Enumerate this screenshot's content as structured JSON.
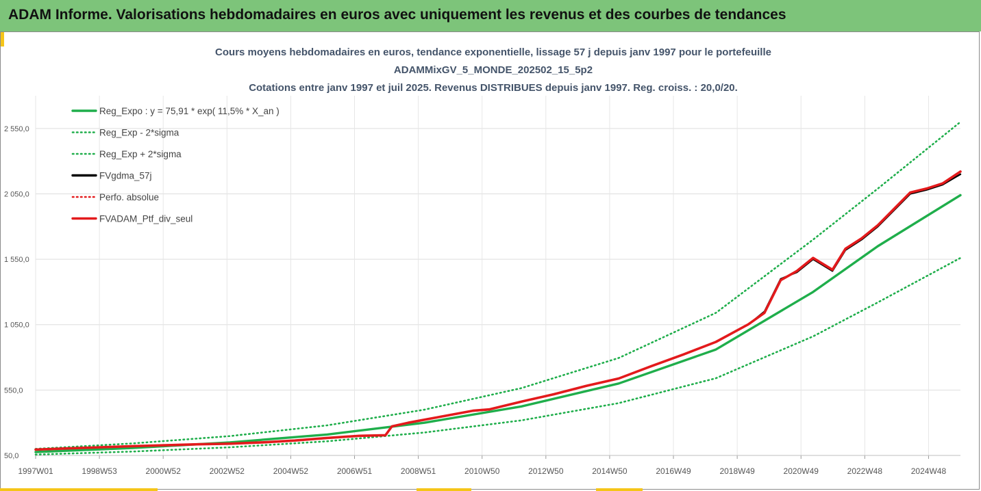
{
  "banner": {
    "title": "ADAM Informe. Valorisations hebdomadaires en euros avec uniquement les revenus et des courbes de tendances"
  },
  "colors": {
    "banner_bg": "#7dc47a",
    "accent": "#f5c518",
    "trend": "#1fae4b",
    "fv": "#000000",
    "perf": "#e31a1c",
    "title": "#44546a"
  },
  "chart_data": {
    "type": "line",
    "title": [
      "Cours moyens hebdomadaires  en euros, tendance exponentielle, lissage 57 j depuis janv 1997 pour le portefeuille",
      "ADAMMixGV_5_MONDE_202502_15_5p2",
      "Cotations  entre janv 1997 et juil 2025. Revenus DISTRIBUES depuis janv 1997. Reg. croiss. : 20,0/20."
    ],
    "xlabel": "",
    "ylabel": "",
    "ylim": [
      50,
      2800
    ],
    "y_ticks": [
      50,
      550,
      1050,
      1550,
      2050,
      2550
    ],
    "y_tick_labels": [
      "50,0",
      "550,0",
      "1 050,0",
      "1 550,0",
      "2 050,0",
      "2 550,0"
    ],
    "x_tick_labels": [
      "1997W01",
      "1998W53",
      "2000W52",
      "2002W52",
      "2004W52",
      "2006W51",
      "2008W51",
      "2010W50",
      "2012W50",
      "2014W50",
      "2016W49",
      "2018W49",
      "2020W49",
      "2022W48",
      "2024W48"
    ],
    "xlim": [
      1997.0,
      2025.55
    ],
    "grid": true,
    "legend_position": "top-left",
    "legend": [
      "Reg_Expo : y = 75,91 * exp( 11,5% *  X_an )",
      "Reg_Exp - 2*sigma",
      "Reg_Exp + 2*sigma",
      "FVgdma_57j",
      "Perfo. absolue",
      "FVADAM_Ptf_div_seul"
    ],
    "series": [
      {
        "name": "Reg_Expo : y = 75,91 * exp( 11,5% *  X_an )",
        "style": "solid",
        "color": "#1fae4b",
        "x": [
          1997.0,
          2000.0,
          2003.0,
          2006.0,
          2009.0,
          2012.0,
          2015.0,
          2018.0,
          2021.0,
          2023.0,
          2025.55
        ],
        "values": [
          76,
          107,
          150,
          210,
          300,
          425,
          600,
          860,
          1300,
          1650,
          2040
        ]
      },
      {
        "name": "Reg_Exp - 2*sigma",
        "style": "dotted",
        "color": "#1fae4b",
        "x": [
          1997.0,
          2000.0,
          2003.0,
          2006.0,
          2009.0,
          2012.0,
          2015.0,
          2018.0,
          2021.0,
          2023.0,
          2025.55
        ],
        "values": [
          57,
          80,
          112,
          158,
          225,
          318,
          450,
          640,
          960,
          1220,
          1560
        ]
      },
      {
        "name": "Reg_Exp + 2*sigma",
        "style": "dotted",
        "color": "#1fae4b",
        "x": [
          1997.0,
          2000.0,
          2003.0,
          2006.0,
          2009.0,
          2012.0,
          2015.0,
          2018.0,
          2021.0,
          2023.0,
          2025.55
        ],
        "values": [
          100,
          142,
          198,
          280,
          400,
          565,
          795,
          1140,
          1700,
          2090,
          2600
        ]
      },
      {
        "name": "FVgdma_57j",
        "style": "solid",
        "color": "#000000",
        "x": [
          1997.0,
          1998.0,
          1999.0,
          2000.0,
          2001.0,
          2002.0,
          2003.0,
          2004.0,
          2005.0,
          2006.0,
          2007.0,
          2007.8,
          2008.0,
          2008.5,
          2009.5,
          2010.5,
          2011.0,
          2012.0,
          2013.0,
          2014.0,
          2015.0,
          2016.0,
          2017.0,
          2018.0,
          2019.0,
          2019.5,
          2020.0,
          2020.5,
          2021.0,
          2021.6,
          2022.0,
          2022.5,
          2023.0,
          2023.6,
          2024.0,
          2024.5,
          2025.0,
          2025.55
        ],
        "values": [
          95,
          105,
          112,
          122,
          128,
          135,
          140,
          150,
          165,
          185,
          200,
          205,
          275,
          300,
          345,
          390,
          400,
          460,
          520,
          580,
          640,
          730,
          820,
          920,
          1050,
          1150,
          1400,
          1450,
          1550,
          1460,
          1620,
          1700,
          1800,
          1950,
          2050,
          2080,
          2120,
          2200
        ]
      },
      {
        "name": "Perfo. absolue",
        "style": "dotted",
        "color": "#e31a1c",
        "x": [
          1997.0,
          1998.0,
          1999.0,
          2000.0,
          2001.0,
          2002.0,
          2003.0,
          2004.0,
          2005.0,
          2006.0,
          2007.0,
          2007.8,
          2008.0,
          2008.5,
          2009.5,
          2010.5,
          2011.0,
          2012.0,
          2013.0,
          2014.0,
          2015.0,
          2016.0,
          2017.0,
          2018.0,
          2019.0,
          2019.5,
          2020.0,
          2020.5,
          2021.0,
          2021.6,
          2022.0,
          2022.5,
          2023.0,
          2023.6,
          2024.0,
          2024.5,
          2025.0,
          2025.55
        ],
        "values": [
          95,
          104,
          112,
          121,
          128,
          135,
          140,
          150,
          164,
          184,
          200,
          205,
          272,
          300,
          346,
          392,
          402,
          462,
          518,
          582,
          638,
          732,
          822,
          918,
          1052,
          1140,
          1390,
          1460,
          1560,
          1470,
          1630,
          1710,
          1810,
          1960,
          2060,
          2090,
          2130,
          2220
        ]
      },
      {
        "name": "FVADAM_Ptf_div_seul",
        "style": "solid",
        "color": "#e31a1c",
        "x": [
          1997.0,
          1998.0,
          1999.0,
          2000.0,
          2001.0,
          2002.0,
          2003.0,
          2004.0,
          2005.0,
          2006.0,
          2007.0,
          2007.8,
          2008.0,
          2008.5,
          2009.5,
          2010.5,
          2011.0,
          2012.0,
          2013.0,
          2014.0,
          2015.0,
          2016.0,
          2017.0,
          2018.0,
          2019.0,
          2019.5,
          2020.0,
          2020.5,
          2021.0,
          2021.6,
          2022.0,
          2022.5,
          2023.0,
          2023.6,
          2024.0,
          2024.5,
          2025.0,
          2025.55
        ],
        "values": [
          95,
          104,
          112,
          121,
          128,
          135,
          140,
          150,
          164,
          184,
          200,
          205,
          272,
          300,
          346,
          392,
          402,
          462,
          518,
          582,
          638,
          732,
          822,
          918,
          1052,
          1140,
          1390,
          1460,
          1560,
          1470,
          1630,
          1710,
          1810,
          1960,
          2060,
          2090,
          2130,
          2220
        ]
      }
    ]
  }
}
